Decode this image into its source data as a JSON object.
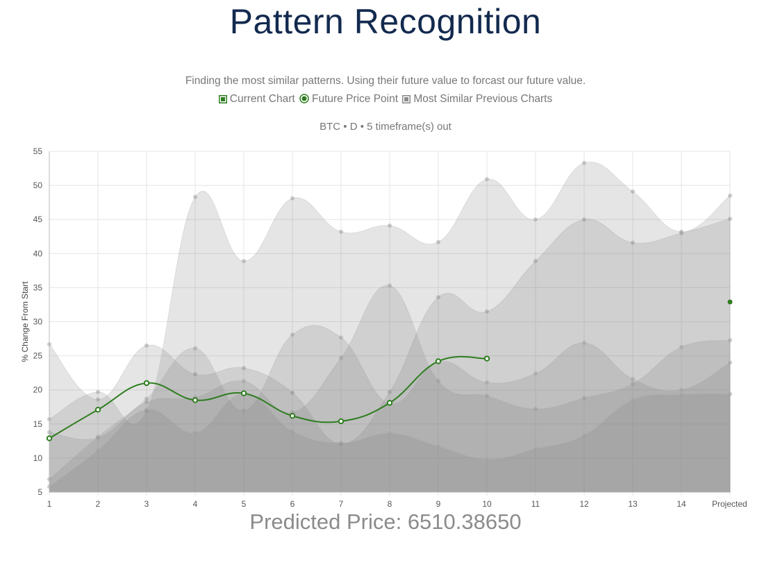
{
  "page": {
    "title": "Pattern Recognition",
    "subtitle": "Finding the most similar patterns. Using their future value to forcast our future value.",
    "legend": [
      {
        "label": "Current Chart",
        "icon": "filled-square-green-icon",
        "color": "#2e7d1f"
      },
      {
        "label": "Future Price Point",
        "icon": "filled-circle-green-icon",
        "color": "#2e7d1f"
      },
      {
        "label": "Most Similar Previous Charts",
        "icon": "filled-square-gray-icon",
        "color": "#8a8a8a"
      }
    ],
    "chart_info": "BTC • D • 5 timeframe(s) out",
    "predicted_price": "Predicted Price: 6510.38650"
  },
  "chart_data": {
    "type": "area",
    "ylabel": "% Change From Start",
    "xlabel": "",
    "ylim": [
      5,
      55
    ],
    "yticks": [
      5,
      10,
      15,
      20,
      25,
      30,
      35,
      40,
      45,
      50,
      55
    ],
    "categories": [
      "1",
      "2",
      "3",
      "4",
      "5",
      "6",
      "7",
      "8",
      "9",
      "10",
      "11",
      "12",
      "13",
      "14",
      "Projected"
    ],
    "grid": true,
    "previous_series": [
      {
        "values": [
          26.7,
          18.6,
          26.5,
          22.3,
          23.2,
          19.6,
          12.1,
          19.7,
          33.6,
          31.5,
          38.9,
          45.0,
          41.6,
          43.0,
          45.1
        ]
      },
      {
        "values": [
          15.7,
          19.7,
          16.9,
          48.3,
          38.9,
          48.1,
          43.2,
          44.1,
          41.7,
          50.9,
          45.0,
          53.3,
          49.1,
          43.2,
          48.5
        ]
      },
      {
        "values": [
          13.8,
          13.0,
          18.2,
          18.9,
          21.3,
          16.7,
          24.7,
          35.3,
          21.3,
          19.1,
          17.2,
          18.8,
          20.9,
          26.3,
          27.3
        ]
      },
      {
        "values": [
          6.9,
          13.1,
          18.7,
          26.1,
          17.0,
          28.1,
          27.7,
          18.0,
          24.1,
          21.1,
          22.4,
          26.9,
          21.6,
          20.0,
          24.0
        ]
      },
      {
        "values": [
          5.8,
          11.1,
          17.1,
          13.7,
          19.5,
          13.9,
          12.2,
          13.6,
          11.7,
          9.8,
          11.3,
          13.3,
          18.5,
          19.3,
          19.4
        ]
      }
    ],
    "current_series": {
      "name": "Current Chart",
      "color": "#2e7d1f",
      "values": [
        12.9,
        17.1,
        21.0,
        18.5,
        19.5,
        16.2,
        15.4,
        18.1,
        24.2,
        24.6
      ]
    },
    "future_point": {
      "name": "Future Price Point",
      "x": "Projected",
      "y": 32.9,
      "color": "#2e7d1f"
    }
  }
}
